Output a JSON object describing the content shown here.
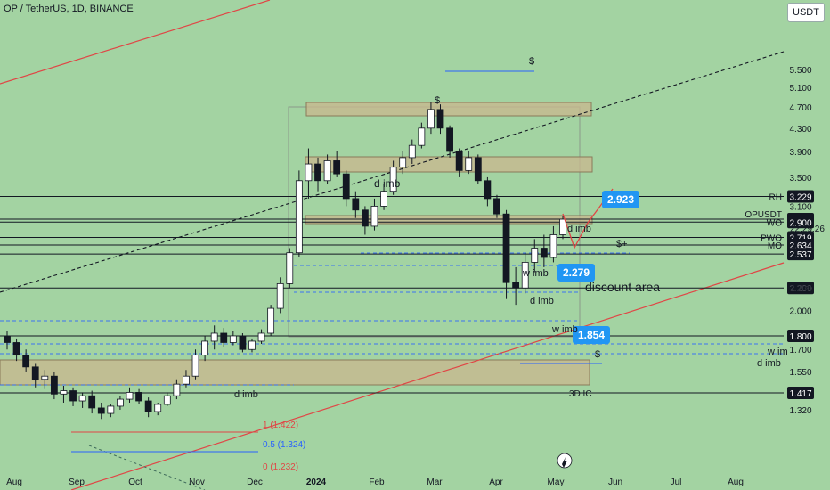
{
  "header": {
    "symbol": "OP / TetherUS, 1D, BINANCE"
  },
  "currency_button": "USDT",
  "chart_data": {
    "type": "candlestick",
    "title": "OP / TetherUS, 1D, BINANCE",
    "y_axis": {
      "scale": "log",
      "ticks": [
        "5.500",
        "5.100",
        "4.700",
        "4.300",
        "3.900",
        "3.500",
        "3.100",
        "2.200",
        "2.000",
        "1.700",
        "1.550",
        "1.320"
      ]
    },
    "x_axis": {
      "ticks": [
        "Aug",
        "Sep",
        "Oct",
        "Nov",
        "Dec",
        "2024",
        "Feb",
        "Mar",
        "Apr",
        "May",
        "Jun",
        "Jul",
        "Aug"
      ]
    },
    "series": [
      {
        "values": [
          [
            1.8,
            1.84,
            1.7,
            1.75
          ],
          [
            1.75,
            1.78,
            1.62,
            1.66
          ],
          [
            1.66,
            1.7,
            1.55,
            1.58
          ],
          [
            1.58,
            1.6,
            1.45,
            1.5
          ],
          [
            1.5,
            1.56,
            1.44,
            1.52
          ],
          [
            1.52,
            1.55,
            1.38,
            1.41
          ],
          [
            1.41,
            1.46,
            1.36,
            1.43
          ],
          [
            1.43,
            1.45,
            1.34,
            1.37
          ],
          [
            1.37,
            1.42,
            1.33,
            1.4
          ],
          [
            1.4,
            1.43,
            1.3,
            1.33
          ],
          [
            1.33,
            1.36,
            1.27,
            1.3
          ],
          [
            1.3,
            1.35,
            1.28,
            1.34
          ],
          [
            1.34,
            1.4,
            1.32,
            1.38
          ],
          [
            1.38,
            1.45,
            1.36,
            1.42
          ],
          [
            1.42,
            1.44,
            1.35,
            1.37
          ],
          [
            1.37,
            1.39,
            1.28,
            1.31
          ],
          [
            1.31,
            1.36,
            1.29,
            1.35
          ],
          [
            1.35,
            1.42,
            1.34,
            1.4
          ],
          [
            1.4,
            1.5,
            1.38,
            1.47
          ],
          [
            1.47,
            1.56,
            1.45,
            1.52
          ],
          [
            1.52,
            1.7,
            1.5,
            1.66
          ],
          [
            1.66,
            1.8,
            1.62,
            1.76
          ],
          [
            1.76,
            1.88,
            1.7,
            1.82
          ],
          [
            1.82,
            1.86,
            1.72,
            1.75
          ],
          [
            1.75,
            1.84,
            1.73,
            1.8
          ],
          [
            1.8,
            1.82,
            1.68,
            1.7
          ],
          [
            1.7,
            1.78,
            1.68,
            1.76
          ],
          [
            1.76,
            1.85,
            1.74,
            1.82
          ],
          [
            1.82,
            2.05,
            1.8,
            2.02
          ],
          [
            2.02,
            2.3,
            1.98,
            2.24
          ],
          [
            2.24,
            2.6,
            2.2,
            2.55
          ],
          [
            2.55,
            3.6,
            2.5,
            3.45
          ],
          [
            3.45,
            3.95,
            3.2,
            3.7
          ],
          [
            3.7,
            3.8,
            3.3,
            3.45
          ],
          [
            3.45,
            3.85,
            3.4,
            3.75
          ],
          [
            3.75,
            3.9,
            3.5,
            3.55
          ],
          [
            3.55,
            3.6,
            3.1,
            3.2
          ],
          [
            3.2,
            3.3,
            2.95,
            3.05
          ],
          [
            3.05,
            3.1,
            2.75,
            2.85
          ],
          [
            2.85,
            3.2,
            2.8,
            3.1
          ],
          [
            3.1,
            3.4,
            3.05,
            3.3
          ],
          [
            3.3,
            3.75,
            3.25,
            3.65
          ],
          [
            3.65,
            3.9,
            3.55,
            3.8
          ],
          [
            3.8,
            4.1,
            3.7,
            4.0
          ],
          [
            4.0,
            4.4,
            3.95,
            4.3
          ],
          [
            4.3,
            4.8,
            4.2,
            4.65
          ],
          [
            4.65,
            4.75,
            4.2,
            4.3
          ],
          [
            4.3,
            4.35,
            3.8,
            3.9
          ],
          [
            3.9,
            3.95,
            3.5,
            3.6
          ],
          [
            3.6,
            3.9,
            3.55,
            3.8
          ],
          [
            3.8,
            3.85,
            3.4,
            3.45
          ],
          [
            3.45,
            3.5,
            3.1,
            3.2
          ],
          [
            3.2,
            3.25,
            2.95,
            3.0
          ],
          [
            3.0,
            3.05,
            2.1,
            2.25
          ],
          [
            2.25,
            2.4,
            2.05,
            2.2
          ],
          [
            2.2,
            2.55,
            2.15,
            2.45
          ],
          [
            2.45,
            2.7,
            2.35,
            2.6
          ],
          [
            2.6,
            2.75,
            2.4,
            2.5
          ],
          [
            2.5,
            2.85,
            2.45,
            2.75
          ],
          [
            2.75,
            2.97,
            2.7,
            2.935
          ]
        ]
      }
    ],
    "horizontal_levels": [
      {
        "price": "3.229",
        "label": "RH",
        "color": "#131722"
      },
      {
        "price": "2.935",
        "label": "OPUSDT",
        "color": "#131722"
      },
      {
        "price": "2.900",
        "label": "WO",
        "color": "#131722"
      },
      {
        "price": "2.719",
        "label": "PWO",
        "color": "#131722"
      },
      {
        "price": "2.634",
        "label": "MO",
        "color": "#131722"
      },
      {
        "price": "2.537",
        "label": "",
        "color": "#131722"
      },
      {
        "price": "2.200",
        "label": "",
        "color": "#131722"
      },
      {
        "price": "1.800",
        "label": "",
        "color": "#131722"
      },
      {
        "price": "1.417",
        "label": "",
        "color": "#131722"
      }
    ],
    "countdown": "22:29:26",
    "price_callouts": [
      "2.923",
      "2.279",
      "1.854"
    ],
    "fib_labels": [
      "1 (1.422)",
      "0.5 (1.324)",
      "0 (1.232)"
    ],
    "annotations": [
      "d imb",
      "d imb",
      "w imb",
      "d imb",
      "w imb",
      "3D IC",
      "discount area",
      "$",
      "$",
      "$+",
      "$",
      "d imb",
      "w im",
      "d imb",
      "w imb",
      "d imb",
      "d imb"
    ]
  }
}
